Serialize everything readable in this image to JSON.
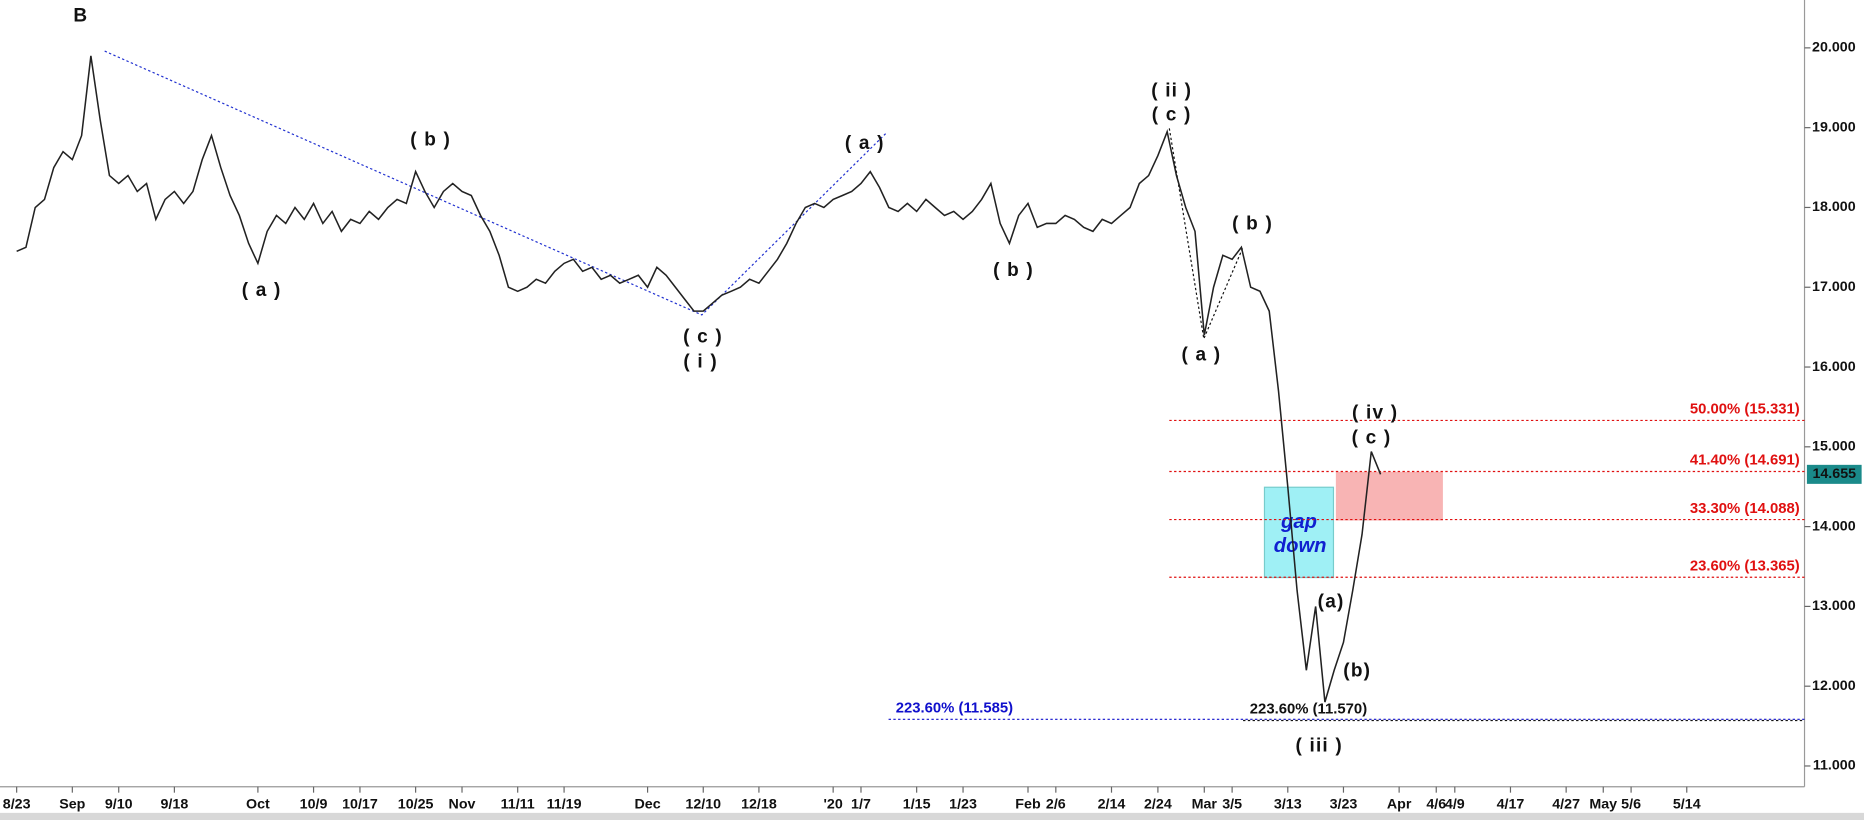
{
  "chart_data": {
    "type": "line",
    "categories": [
      "8/23",
      null,
      null,
      null,
      null,
      null,
      "Sep",
      null,
      null,
      null,
      null,
      "9/10",
      null,
      null,
      null,
      null,
      null,
      "9/18",
      null,
      null,
      null,
      null,
      null,
      null,
      null,
      null,
      "Oct",
      null,
      null,
      null,
      null,
      null,
      "10/9",
      null,
      null,
      null,
      null,
      "10/17",
      null,
      null,
      null,
      null,
      null,
      "10/25",
      null,
      null,
      null,
      null,
      "Nov",
      null,
      null,
      null,
      null,
      null,
      "11/11",
      null,
      null,
      null,
      null,
      "11/19",
      null,
      null,
      null,
      null,
      null,
      null,
      null,
      null,
      "Dec",
      null,
      null,
      null,
      null,
      null,
      "12/10",
      null,
      null,
      null,
      null,
      null,
      "12/18",
      null,
      null,
      null,
      null,
      null,
      null,
      null,
      "'20",
      null,
      null,
      "1/7",
      null,
      null,
      null,
      null,
      null,
      "1/15",
      null,
      null,
      null,
      null,
      "1/23",
      null,
      null,
      null,
      null,
      null,
      null,
      "Feb",
      null,
      null,
      "2/6",
      null,
      null,
      null,
      null,
      null,
      "2/14",
      null,
      null,
      null,
      null,
      "2/24",
      null,
      null,
      null,
      null,
      "Mar",
      null,
      null,
      "3/5",
      null,
      null,
      null,
      null,
      null,
      "3/13",
      null,
      null,
      null,
      null,
      null,
      "3/23",
      null,
      null,
      null,
      null,
      null,
      "Apr",
      null,
      null,
      null,
      "4/6",
      null,
      "4/9",
      null,
      null,
      null,
      null,
      null,
      "4/17",
      null,
      null,
      null,
      null,
      null,
      "4/27",
      null,
      null,
      null,
      "May",
      null,
      null,
      "5/6",
      null,
      null,
      null,
      null,
      null,
      "5/14"
    ],
    "series": [
      {
        "color": "#222222",
        "values": [
          17.45,
          17.5,
          18.0,
          18.1,
          18.5,
          18.7,
          18.6,
          18.9,
          19.9,
          19.1,
          18.4,
          18.3,
          18.4,
          18.2,
          18.3,
          17.85,
          18.1,
          18.2,
          18.05,
          18.2,
          18.6,
          18.9,
          18.5,
          18.15,
          17.9,
          17.55,
          17.3,
          17.7,
          17.9,
          17.8,
          18.0,
          17.85,
          18.05,
          17.8,
          17.95,
          17.7,
          17.85,
          17.8,
          17.95,
          17.85,
          18.0,
          18.1,
          18.05,
          18.45,
          18.2,
          18.0,
          18.2,
          18.3,
          18.2,
          18.15,
          17.9,
          17.7,
          17.4,
          17.0,
          16.95,
          17.0,
          17.1,
          17.05,
          17.2,
          17.3,
          17.35,
          17.2,
          17.25,
          17.1,
          17.15,
          17.05,
          17.1,
          17.15,
          17.0,
          17.25,
          17.15,
          17.0,
          16.85,
          16.7,
          16.7,
          16.8,
          16.9,
          16.95,
          17.0,
          17.1,
          17.05,
          17.2,
          17.35,
          17.55,
          17.8,
          18.0,
          18.05,
          18.0,
          18.1,
          18.15,
          18.2,
          18.3,
          18.45,
          18.25,
          18.0,
          17.95,
          18.05,
          17.95,
          18.1,
          18.0,
          17.9,
          17.95,
          17.85,
          17.95,
          18.1,
          18.3,
          17.8,
          17.55,
          17.9,
          18.05,
          17.75,
          17.8,
          17.8,
          17.9,
          17.85,
          17.75,
          17.7,
          17.85,
          17.8,
          17.9,
          18.0,
          18.3,
          18.4,
          18.65,
          18.95,
          18.4,
          18.0,
          17.7,
          16.4,
          17.0,
          17.4,
          17.35,
          17.5,
          17.0,
          16.95,
          16.7,
          15.7,
          14.5,
          13.2,
          12.2,
          13.0,
          11.8,
          12.2,
          12.55,
          13.2,
          13.9,
          14.94,
          14.655,
          null,
          null,
          null,
          null,
          null,
          null,
          null,
          null,
          null,
          null,
          null,
          null,
          null,
          null,
          null,
          null,
          null,
          null,
          null,
          null,
          null,
          null,
          null,
          null,
          null,
          null,
          null,
          null,
          null,
          null,
          null,
          null,
          null
        ]
      }
    ],
    "ylim": [
      10.74,
      20.6
    ],
    "yticks": [
      {
        "value": 11,
        "label": "11.000"
      },
      {
        "value": 12,
        "label": "12.000"
      },
      {
        "value": 13,
        "label": "13.000"
      },
      {
        "value": 14,
        "label": "14.000"
      },
      {
        "value": 15,
        "label": "15.000"
      },
      {
        "value": 16,
        "label": "16.000"
      },
      {
        "value": 17,
        "label": "17.000"
      },
      {
        "value": 18,
        "label": "18.000"
      },
      {
        "value": 19,
        "label": "19.000"
      },
      {
        "value": 20,
        "label": "20.000"
      }
    ],
    "last_price": {
      "value": 14.655,
      "label": "14.655",
      "color": "#1a8a8a"
    },
    "fib_levels": [
      {
        "value": 15.331,
        "label": "50.00% (15.331)",
        "color": "#e01010"
      },
      {
        "value": 14.691,
        "label": "41.40% (14.691)",
        "color": "#e01010"
      },
      {
        "value": 14.088,
        "label": "33.30% (14.088)",
        "color": "#e01010"
      },
      {
        "value": 13.365,
        "label": "23.60% (13.365)",
        "color": "#e01010"
      },
      {
        "value": 11.585,
        "label": "223.60% (11.585)",
        "color": "#1010cc"
      },
      {
        "value": 11.57,
        "label": "223.60% (11.570)",
        "color": "#111111"
      }
    ],
    "wave_labels": [
      "B",
      "( a )",
      "( b )",
      "( c )",
      "( i )",
      "( a )",
      "( b )",
      "( ii )",
      "( c )",
      "( b )",
      "( a )",
      "( iv )",
      "( c )",
      "(a)",
      "(b)",
      "( iii )"
    ],
    "gap_text": [
      "gap",
      "down"
    ]
  }
}
